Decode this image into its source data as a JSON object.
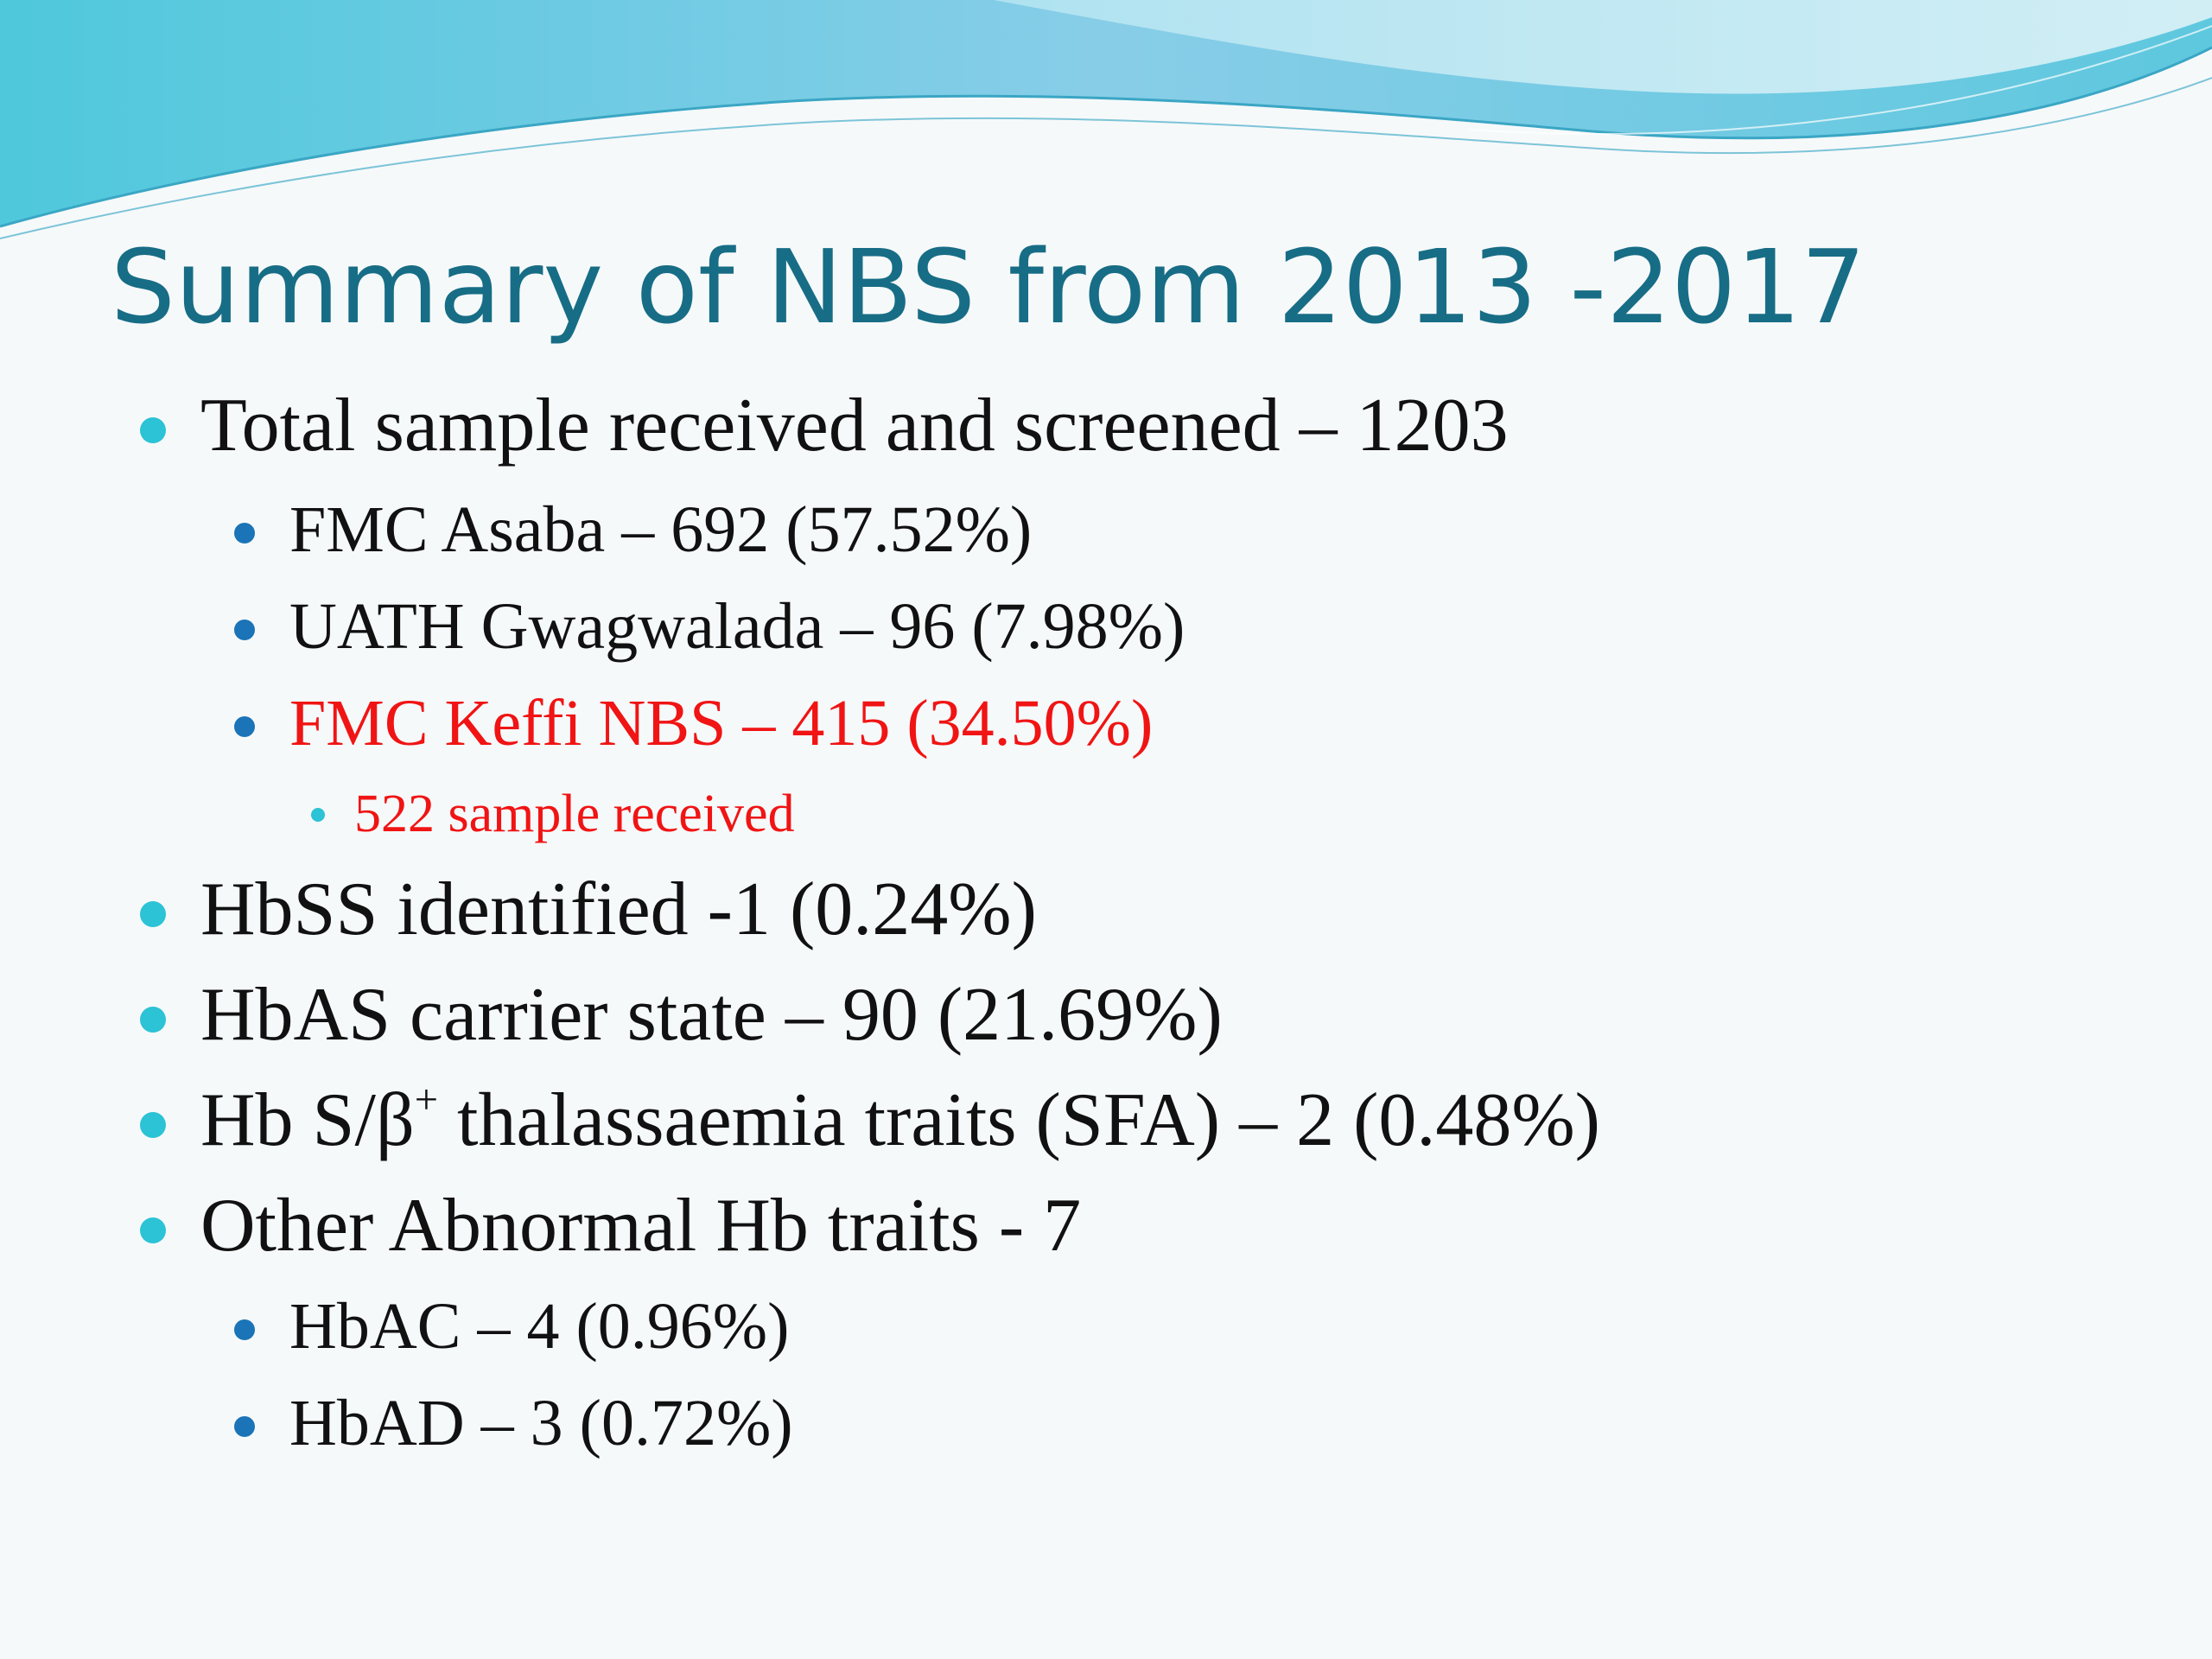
{
  "slide": {
    "title": "Summary of NBS from 2013 -2017",
    "colors": {
      "title": "#176d85",
      "body_text": "#111111",
      "highlight_text": "#f01414",
      "bullet_level1": "#2bc3d5",
      "bullet_level2": "#1a74b7"
    },
    "bullets": {
      "total": "Total sample received and screened – 1203",
      "fmc_asaba": "FMC Asaba – 692 (57.52%)",
      "uath": "UATH Gwagwalada – 96 (7.98%)",
      "fmc_keffi": "FMC Keffi NBS – 415 (34.50%)",
      "keffi_received": "522 sample received",
      "hbss": "HbSS identified -1 (0.24%)",
      "hbas": "HbAS carrier state – 90 (21.69%)",
      "hbs_beta_prefix": "Hb S/β",
      "hbs_beta_sup": "+",
      "hbs_beta_suffix": " thalassaemia traits (SFA) – 2 (0.48%)",
      "other": "Other Abnormal Hb traits - 7",
      "hbac": "HbAC – 4 (0.96%)",
      "hbad": "HbAD – 3 (0.72%)"
    }
  }
}
